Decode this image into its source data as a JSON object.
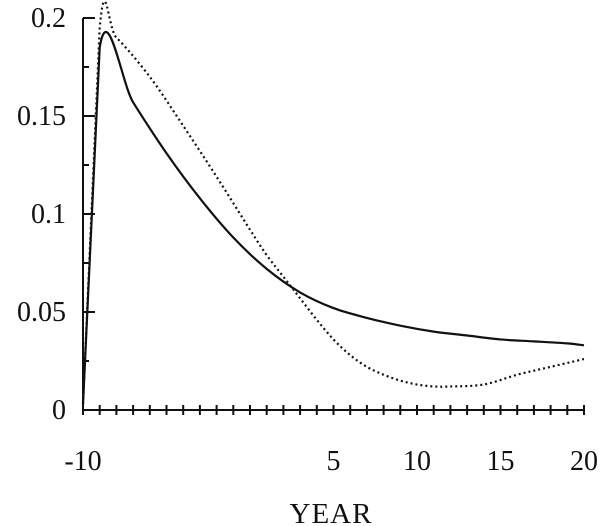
{
  "chart_data": {
    "type": "line",
    "title": "",
    "xlabel": "YEAR",
    "ylabel": "",
    "xlim": [
      -10,
      20
    ],
    "ylim": [
      0,
      0.2
    ],
    "x_tick_labels": [
      "-10",
      "5",
      "10",
      "15",
      "20"
    ],
    "y_tick_labels": [
      "0.2",
      "0.15",
      "0.1",
      "0.05",
      "0"
    ],
    "grid": false,
    "legend": "none",
    "series": [
      {
        "style": "solid",
        "color": "#111111",
        "x": [
          -10,
          -9,
          -7,
          -5,
          -3,
          -1,
          1,
          3,
          5,
          7,
          9,
          11,
          13,
          15,
          17,
          19,
          20
        ],
        "y": [
          0.003,
          0.185,
          0.157,
          0.131,
          0.108,
          0.088,
          0.072,
          0.06,
          0.052,
          0.047,
          0.043,
          0.04,
          0.038,
          0.036,
          0.035,
          0.034,
          0.033
        ]
      },
      {
        "style": "dotted",
        "color": "#111111",
        "x": [
          -10,
          -9,
          -8,
          -6,
          -4,
          -2,
          0,
          1,
          2,
          3,
          4,
          5,
          6,
          7,
          8,
          9,
          10,
          11,
          12,
          14,
          16,
          18,
          20
        ],
        "y": [
          0.003,
          0.195,
          0.19,
          0.17,
          0.145,
          0.119,
          0.092,
          0.079,
          0.068,
          0.057,
          0.046,
          0.036,
          0.028,
          0.022,
          0.018,
          0.015,
          0.013,
          0.012,
          0.012,
          0.013,
          0.018,
          0.022,
          0.026
        ]
      }
    ]
  }
}
